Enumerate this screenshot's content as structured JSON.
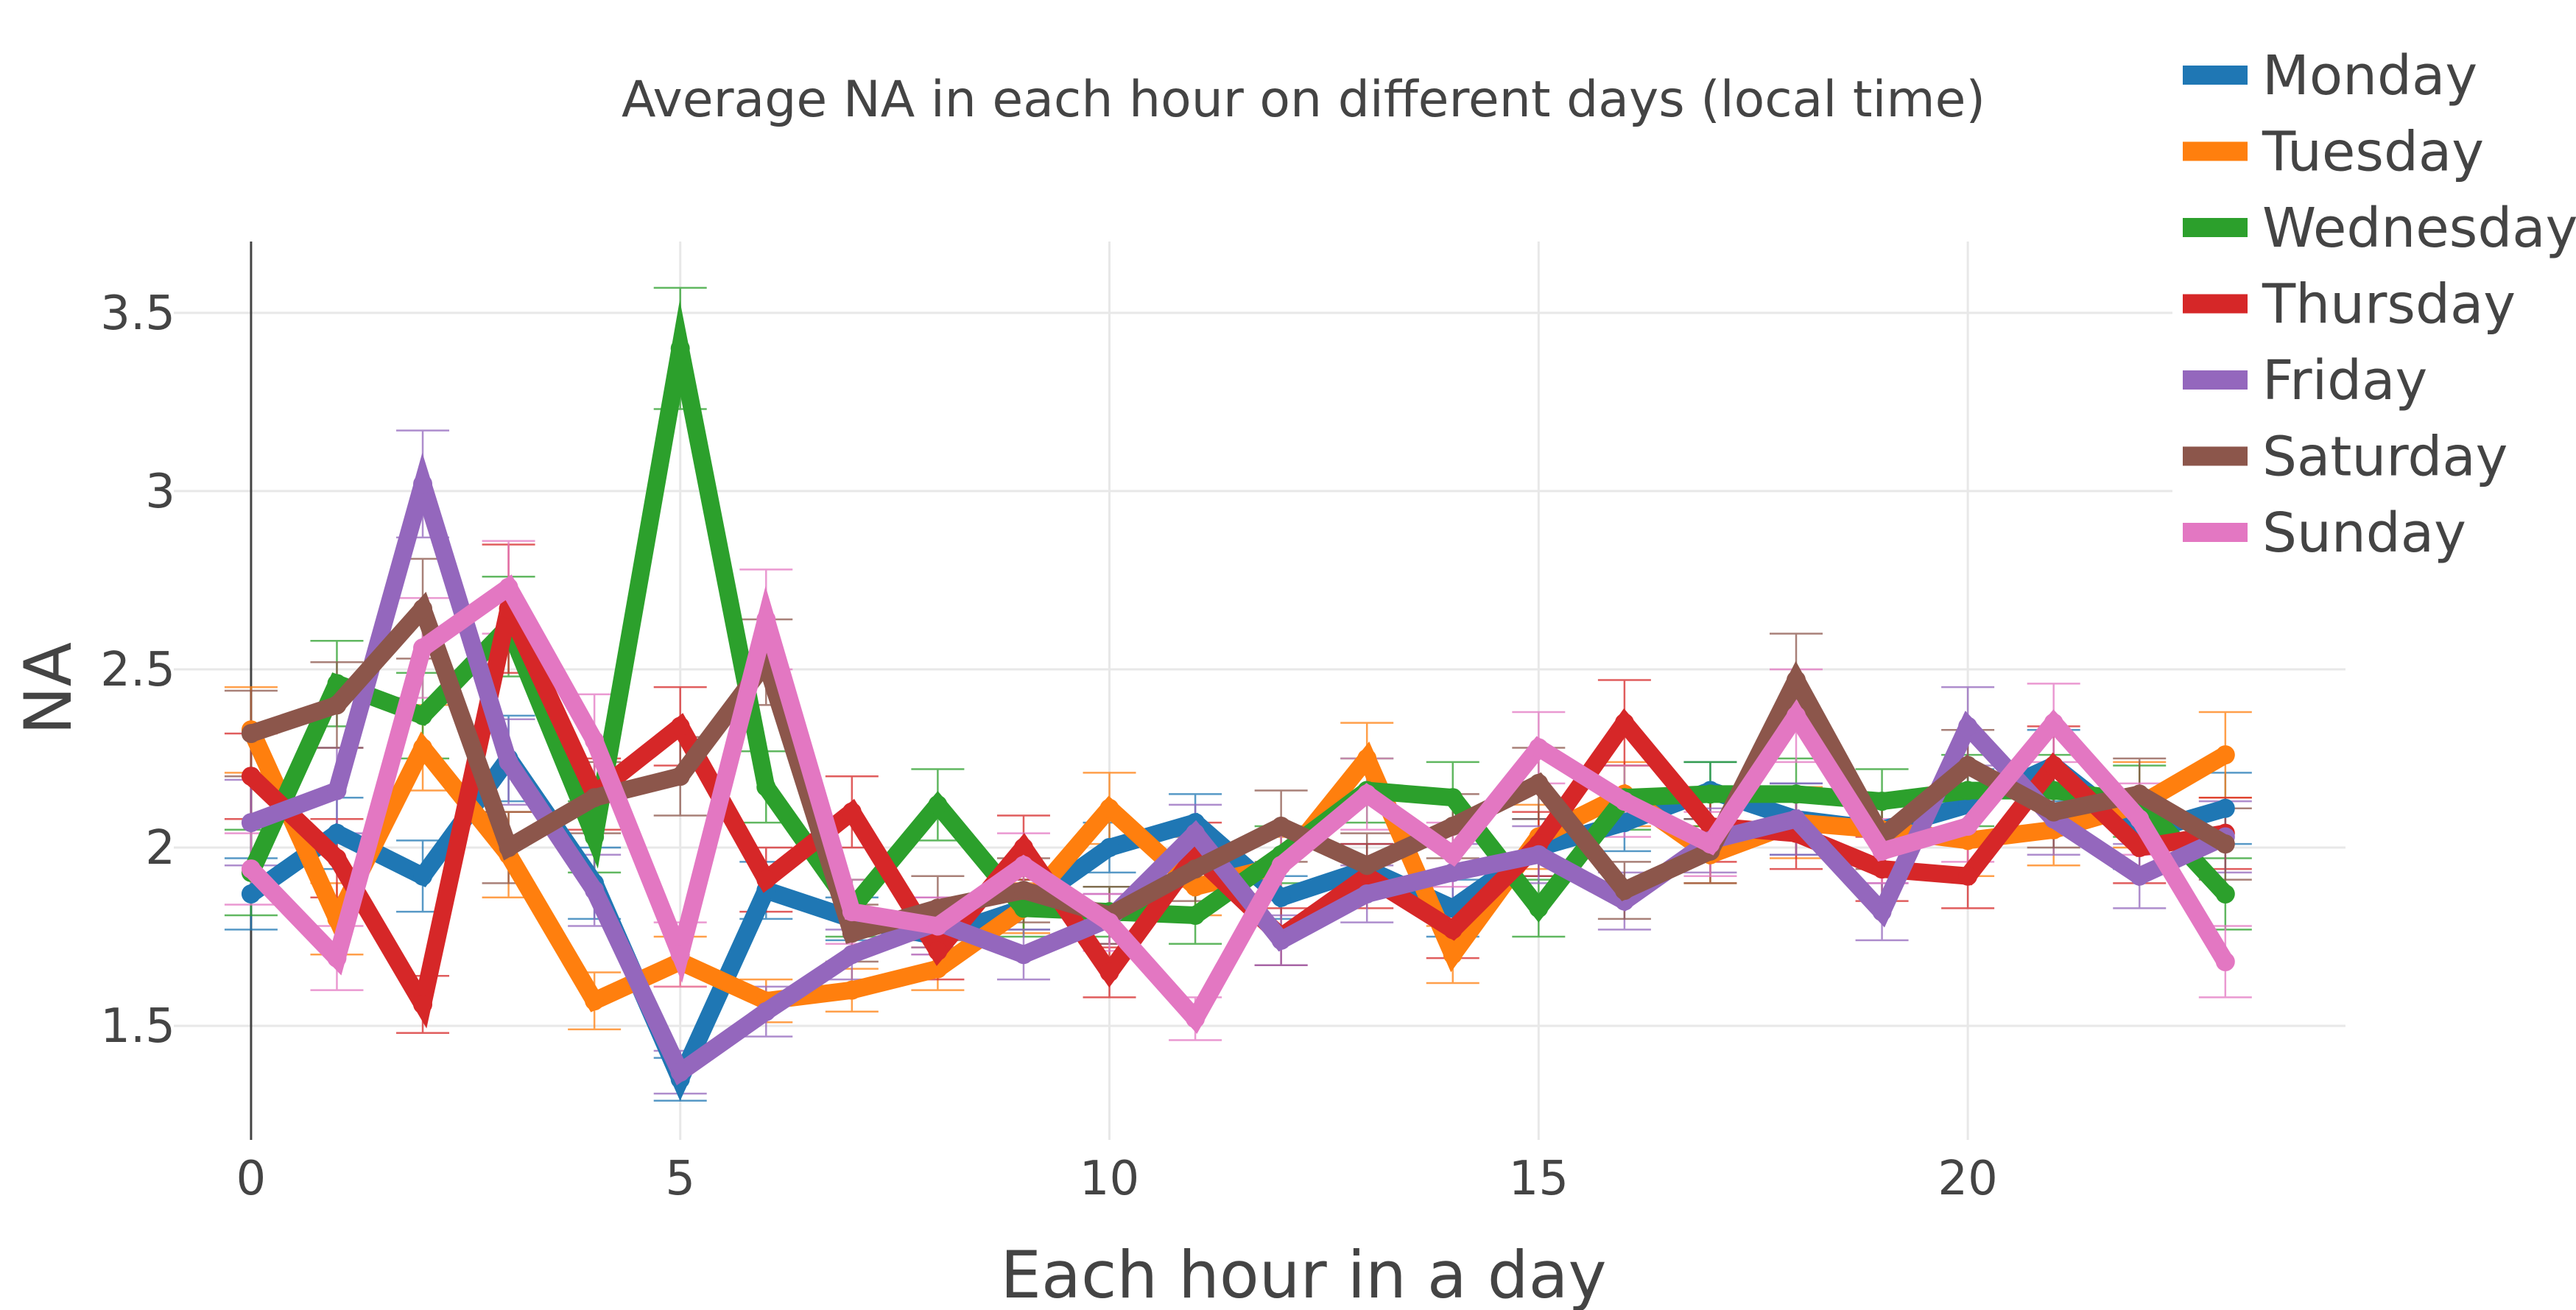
{
  "chart_data": {
    "type": "line",
    "title": "Average NA in each hour on different days (local time)",
    "xlabel": "Each hour in a day",
    "ylabel": "NA",
    "xlim": [
      -0.9,
      24.4
    ],
    "ylim": [
      1.18,
      3.7
    ],
    "x_ticks": [
      0,
      5,
      10,
      15,
      20
    ],
    "y_ticks": [
      1.5,
      2,
      2.5,
      3,
      3.5
    ],
    "x_tick_labels": [
      "0",
      "5",
      "10",
      "15",
      "20"
    ],
    "y_tick_labels": [
      "1.5",
      "2",
      "2.5",
      "3",
      "3.5"
    ],
    "grid": true,
    "error_bars": true,
    "legend_position": "top-right",
    "x": [
      0,
      1,
      2,
      3,
      4,
      5,
      6,
      7,
      8,
      9,
      10,
      11,
      12,
      13,
      14,
      15,
      16,
      17,
      18,
      19,
      20,
      21,
      22,
      23
    ],
    "series": [
      {
        "name": "Monday",
        "color": "#1f77b4",
        "values": [
          1.87,
          2.04,
          1.92,
          2.25,
          1.9,
          1.35,
          1.88,
          1.8,
          1.75,
          1.83,
          2.0,
          2.07,
          1.86,
          1.94,
          1.83,
          2.0,
          2.07,
          2.16,
          2.08,
          2.05,
          2.12,
          2.23,
          2.04,
          2.11
        ],
        "errors": [
          0.1,
          0.1,
          0.1,
          0.12,
          0.1,
          0.06,
          0.08,
          0.06,
          0.05,
          0.06,
          0.07,
          0.08,
          0.06,
          0.07,
          0.08,
          0.08,
          0.08,
          0.08,
          0.1,
          0.1,
          0.1,
          0.1,
          0.1,
          0.1
        ]
      },
      {
        "name": "Tuesday",
        "color": "#ff7f0e",
        "values": [
          2.33,
          1.8,
          2.28,
          1.98,
          1.57,
          1.68,
          1.57,
          1.6,
          1.66,
          1.83,
          2.11,
          1.89,
          1.95,
          2.25,
          1.7,
          2.03,
          2.15,
          1.98,
          2.07,
          2.05,
          2.02,
          2.05,
          2.12,
          2.26
        ],
        "errors": [
          0.12,
          0.1,
          0.12,
          0.12,
          0.08,
          0.07,
          0.06,
          0.06,
          0.06,
          0.07,
          0.1,
          0.08,
          0.08,
          0.1,
          0.08,
          0.09,
          0.09,
          0.08,
          0.1,
          0.1,
          0.1,
          0.1,
          0.12,
          0.12
        ]
      },
      {
        "name": "Wednesday",
        "color": "#2ca02c",
        "values": [
          1.93,
          2.46,
          2.37,
          2.62,
          2.03,
          3.4,
          2.17,
          1.83,
          2.12,
          1.83,
          1.82,
          1.81,
          1.98,
          2.16,
          2.14,
          1.83,
          2.14,
          2.15,
          2.15,
          2.13,
          2.16,
          2.16,
          2.13,
          1.87
        ],
        "errors": [
          0.12,
          0.12,
          0.12,
          0.14,
          0.1,
          0.17,
          0.1,
          0.08,
          0.1,
          0.08,
          0.07,
          0.08,
          0.08,
          0.09,
          0.1,
          0.08,
          0.09,
          0.09,
          0.1,
          0.09,
          0.1,
          0.1,
          0.1,
          0.1
        ]
      },
      {
        "name": "Thursday",
        "color": "#d62728",
        "values": [
          2.2,
          1.97,
          1.56,
          2.67,
          2.15,
          2.34,
          1.91,
          2.1,
          1.71,
          2.0,
          1.65,
          1.98,
          1.75,
          1.92,
          1.77,
          2.01,
          2.35,
          2.06,
          2.04,
          1.94,
          1.92,
          2.23,
          2.0,
          2.04
        ],
        "errors": [
          0.12,
          0.11,
          0.08,
          0.18,
          0.1,
          0.11,
          0.09,
          0.1,
          0.08,
          0.09,
          0.07,
          0.09,
          0.08,
          0.09,
          0.08,
          0.09,
          0.12,
          0.1,
          0.1,
          0.09,
          0.09,
          0.11,
          0.1,
          0.1
        ]
      },
      {
        "name": "Friday",
        "color": "#9467bd",
        "values": [
          2.07,
          2.16,
          3.02,
          2.24,
          1.88,
          1.37,
          1.54,
          1.7,
          1.79,
          1.7,
          1.8,
          2.04,
          1.74,
          1.87,
          1.93,
          1.98,
          1.85,
          2.02,
          2.08,
          1.82,
          2.34,
          2.08,
          1.92,
          2.03
        ],
        "errors": [
          0.12,
          0.12,
          0.15,
          0.12,
          0.1,
          0.06,
          0.07,
          0.07,
          0.07,
          0.07,
          0.07,
          0.08,
          0.07,
          0.08,
          0.08,
          0.08,
          0.08,
          0.09,
          0.1,
          0.08,
          0.11,
          0.1,
          0.09,
          0.1
        ]
      },
      {
        "name": "Saturday",
        "color": "#8c564b",
        "values": [
          2.32,
          2.4,
          2.67,
          2.0,
          2.14,
          2.2,
          2.52,
          1.76,
          1.83,
          1.88,
          1.81,
          1.94,
          2.06,
          1.95,
          2.06,
          2.18,
          1.88,
          1.99,
          2.47,
          2.03,
          2.23,
          2.1,
          2.15,
          2.01
        ],
        "errors": [
          0.12,
          0.12,
          0.14,
          0.1,
          0.1,
          0.11,
          0.12,
          0.08,
          0.09,
          0.09,
          0.08,
          0.09,
          0.1,
          0.09,
          0.09,
          0.1,
          0.08,
          0.09,
          0.13,
          0.09,
          0.1,
          0.1,
          0.1,
          0.1
        ]
      },
      {
        "name": "Sunday",
        "color": "#e377c2",
        "values": [
          1.94,
          1.69,
          2.56,
          2.73,
          2.3,
          1.7,
          2.64,
          1.82,
          1.78,
          1.95,
          1.79,
          1.52,
          1.95,
          2.15,
          1.98,
          2.28,
          2.13,
          2.01,
          2.37,
          1.99,
          2.06,
          2.35,
          2.08,
          1.68
        ],
        "errors": [
          0.1,
          0.09,
          0.14,
          0.13,
          0.13,
          0.09,
          0.14,
          0.09,
          0.08,
          0.09,
          0.08,
          0.06,
          0.09,
          0.1,
          0.09,
          0.1,
          0.1,
          0.09,
          0.13,
          0.09,
          0.1,
          0.11,
          0.1,
          0.1
        ]
      }
    ]
  }
}
